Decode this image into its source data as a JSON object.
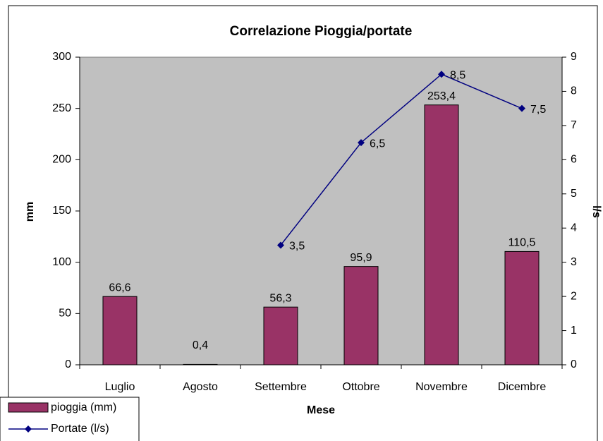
{
  "chart_data": {
    "type": "bar",
    "title": "Correlazione Pioggia/portate",
    "xlabel": "Mese",
    "ylabel": "mm",
    "y2label": "l/s",
    "categories": [
      "Luglio",
      "Agosto",
      "Settembre",
      "Ottobre",
      "Novembre",
      "Dicembre"
    ],
    "series": [
      {
        "name": "pioggia (mm)",
        "color": "#993366",
        "values": [
          66.6,
          0.4,
          56.3,
          95.9,
          253.4,
          110.5
        ],
        "value_labels": [
          "66,6",
          "0,4",
          "56,3",
          "95,9",
          "253,4",
          "110,5"
        ]
      },
      {
        "name": "Portate (l/s)",
        "type": "line",
        "axis": "y2",
        "color": "#000080",
        "values": [
          null,
          null,
          3.5,
          6.5,
          8.5,
          7.5
        ],
        "value_labels": [
          null,
          null,
          "3,5",
          "6,5",
          "8,5",
          "7,5"
        ]
      }
    ],
    "ylim": [
      0,
      300
    ],
    "yticks": [
      0,
      50,
      100,
      150,
      200,
      250,
      300
    ],
    "y2lim": [
      0,
      9
    ],
    "y2ticks": [
      0,
      1,
      2,
      3,
      4,
      5,
      6,
      7,
      8,
      9
    ],
    "plot_background": "#c0c0c0",
    "legend": "bottom-left"
  }
}
